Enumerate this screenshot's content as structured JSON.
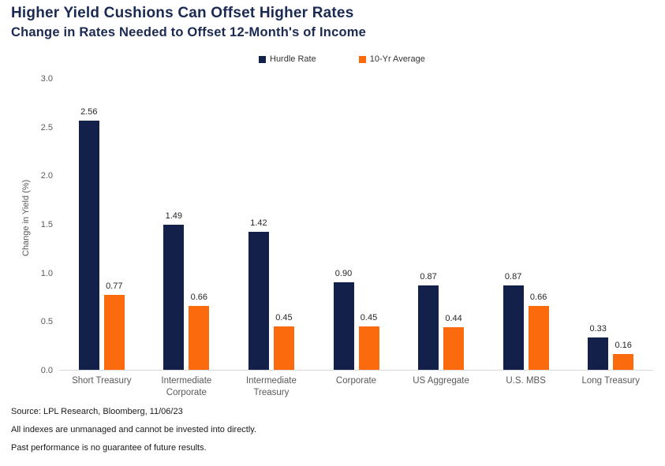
{
  "header": {
    "title": "Higher Yield Cushions Can Offset Higher Rates",
    "subtitle": "Change in Rates Needed to Offset 12-Month's of Income"
  },
  "colors": {
    "title_navy": "#1B2A52",
    "axis_gray": "#595959",
    "axis_line": "#D9D9D9",
    "hurdle_rate": "#13214A",
    "ten_yr_average": "#FC6A0E"
  },
  "chart_data": {
    "type": "bar",
    "title": "Higher Yield Cushions Can Offset Higher Rates",
    "subtitle": "Change in Rates Needed to Offset 12-Month's of Income",
    "categories": [
      "Short Treasury",
      "Intermediate Corporate",
      "Intermediate Treasury",
      "Corporate",
      "US Aggregate",
      "U.S. MBS",
      "Long Treasury"
    ],
    "series": [
      {
        "name": "Hurdle Rate",
        "color": "#13214A",
        "values": [
          2.56,
          1.49,
          1.42,
          0.9,
          0.87,
          0.87,
          0.33
        ]
      },
      {
        "name": "10-Yr Average",
        "color": "#FC6A0E",
        "values": [
          0.77,
          0.66,
          0.45,
          0.45,
          0.44,
          0.66,
          0.16
        ]
      }
    ],
    "xlabel": "",
    "ylabel": "Change in Yield (%)",
    "ylim": [
      0,
      3
    ],
    "ytick_step": 0.5,
    "ytick_labels": [
      "0.0",
      "0.5",
      "1.0",
      "1.5",
      "2.0",
      "2.5",
      "3.0"
    ],
    "value_label_decimals": 2,
    "grid": false,
    "legend_position": "top-center"
  },
  "footer": {
    "source": "Source: LPL Research, Bloomberg, 11/06/23",
    "note1": "All indexes are unmanaged and cannot be invested into directly.",
    "note2": "Past performance is no guarantee of future results."
  }
}
